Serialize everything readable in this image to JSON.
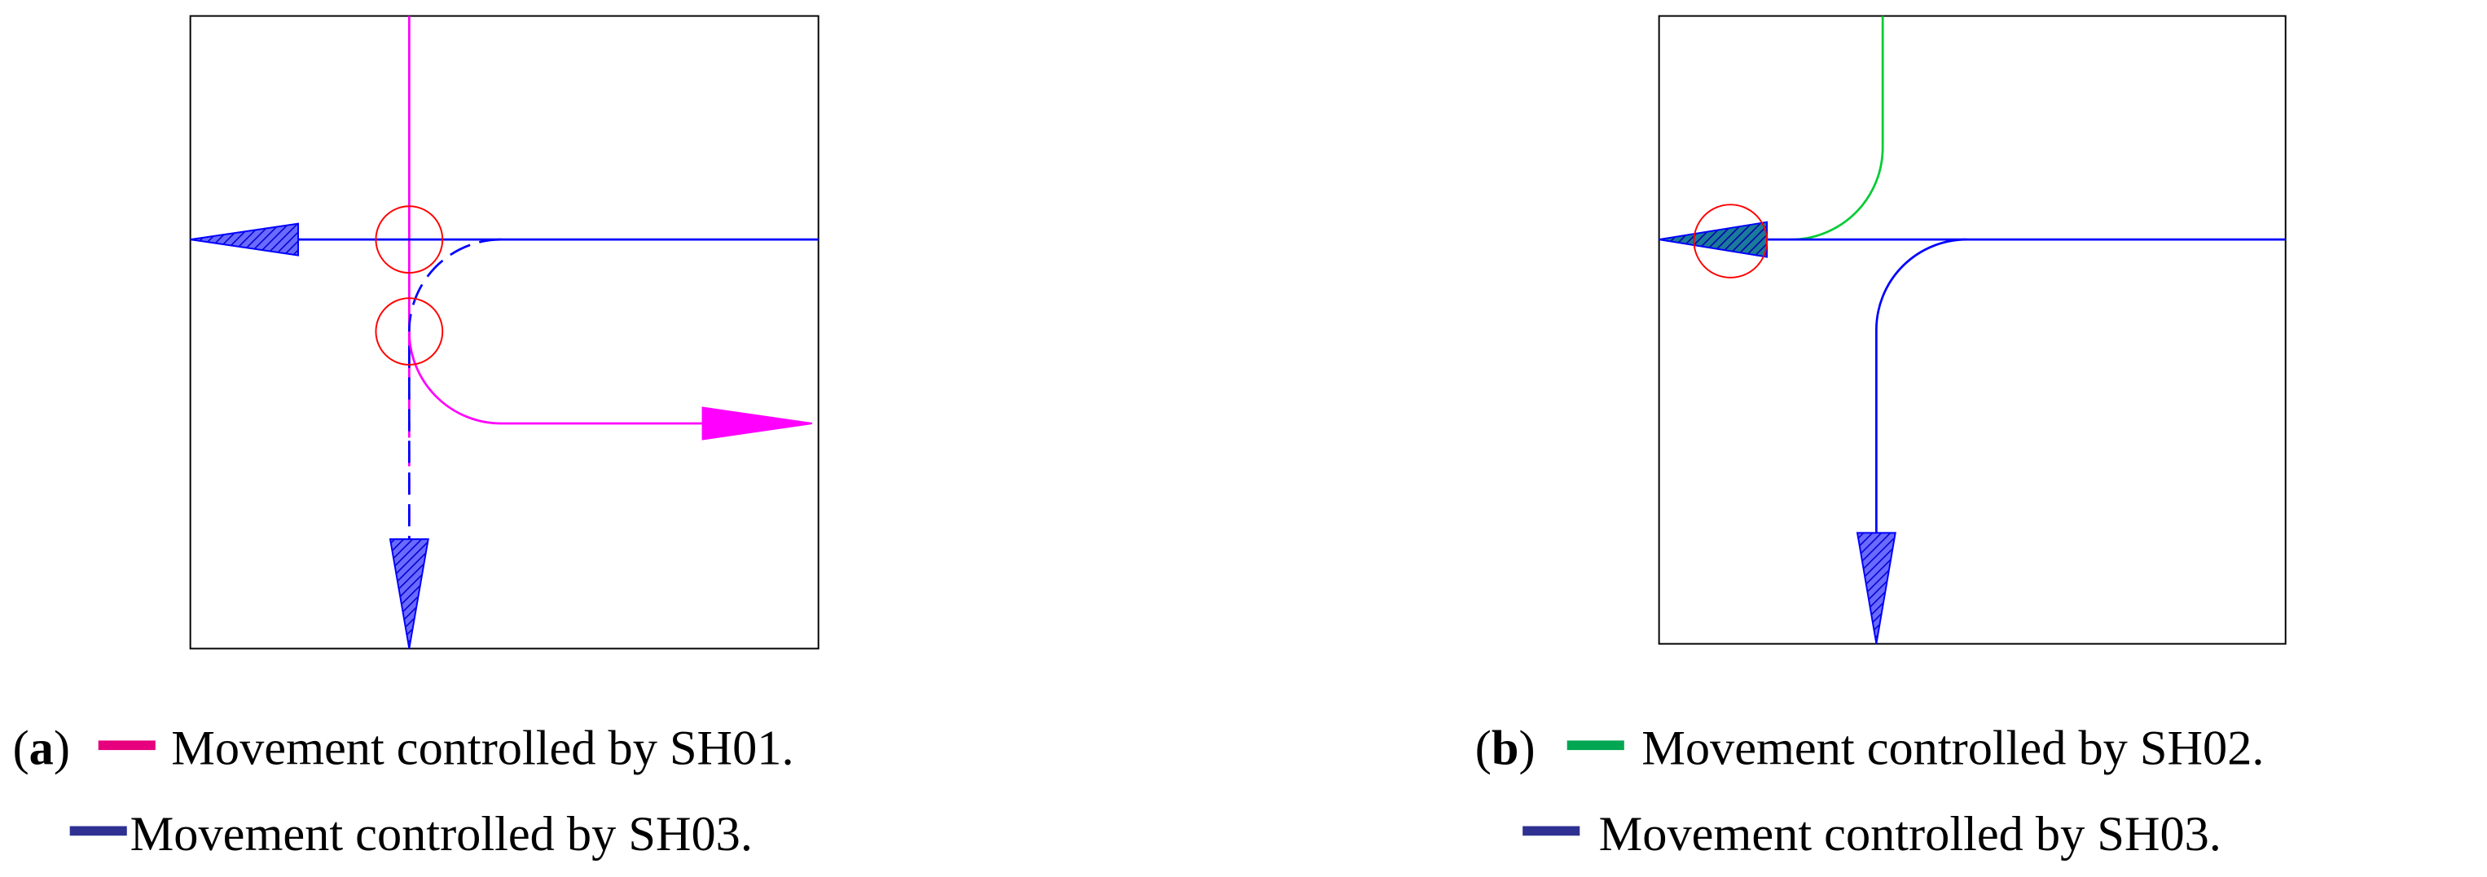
{
  "panels": [
    {
      "label_open": "(",
      "label": "a",
      "label_close": ")",
      "legend": [
        {
          "text": "Movement controlled by SH01.",
          "color": "#e6007e"
        },
        {
          "text": "Movement controlled by SH03.",
          "color": "#2e3192"
        }
      ]
    },
    {
      "label_open": "(",
      "label": "b",
      "label_close": ")",
      "legend": [
        {
          "text": "Movement controlled by SH02.",
          "color": "#00a651"
        },
        {
          "text": "Movement controlled by SH03.",
          "color": "#2e3192"
        }
      ]
    }
  ]
}
